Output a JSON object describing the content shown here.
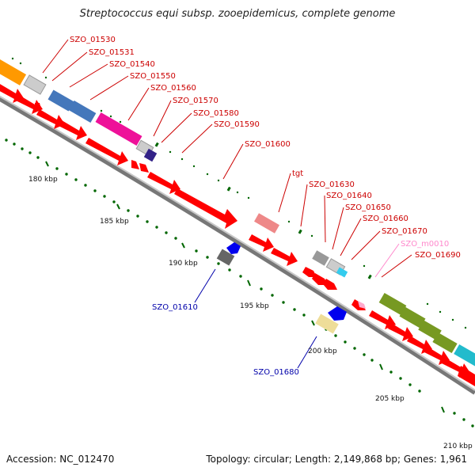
{
  "title": "Streptococcus equi subsp. zooepidemicus, complete genome",
  "footer": {
    "accession": "Accession: NC_012470",
    "summary": "Topology: circular; Length: 2,149,868 bp; Genes: 1,961"
  },
  "scale_labels": [
    "180 kbp",
    "185 kbp",
    "190 kbp",
    "195 kbp",
    "200 kbp",
    "205 kbp",
    "210 kbp"
  ],
  "gene_labels_forward": [
    "SZO_01530",
    "SZO_01531",
    "SZO_01540",
    "SZO_01550",
    "SZO_01560",
    "SZO_01570",
    "SZO_01580",
    "SZO_01590",
    "SZO_01600",
    "tgt",
    "SZO_01630",
    "SZO_01640",
    "SZO_01650",
    "SZO_01660",
    "SZO_01670",
    "SZO_m0010",
    "SZO_01690"
  ],
  "gene_labels_reverse": [
    "SZO_01610",
    "SZO_01680"
  ],
  "colors": {
    "forward_label": "#cc0000",
    "reverse_label": "#0000aa",
    "misc_label": "#ff88cc",
    "cds_red": "#ff0000",
    "backbone": "#808080",
    "tick": "#006600"
  }
}
